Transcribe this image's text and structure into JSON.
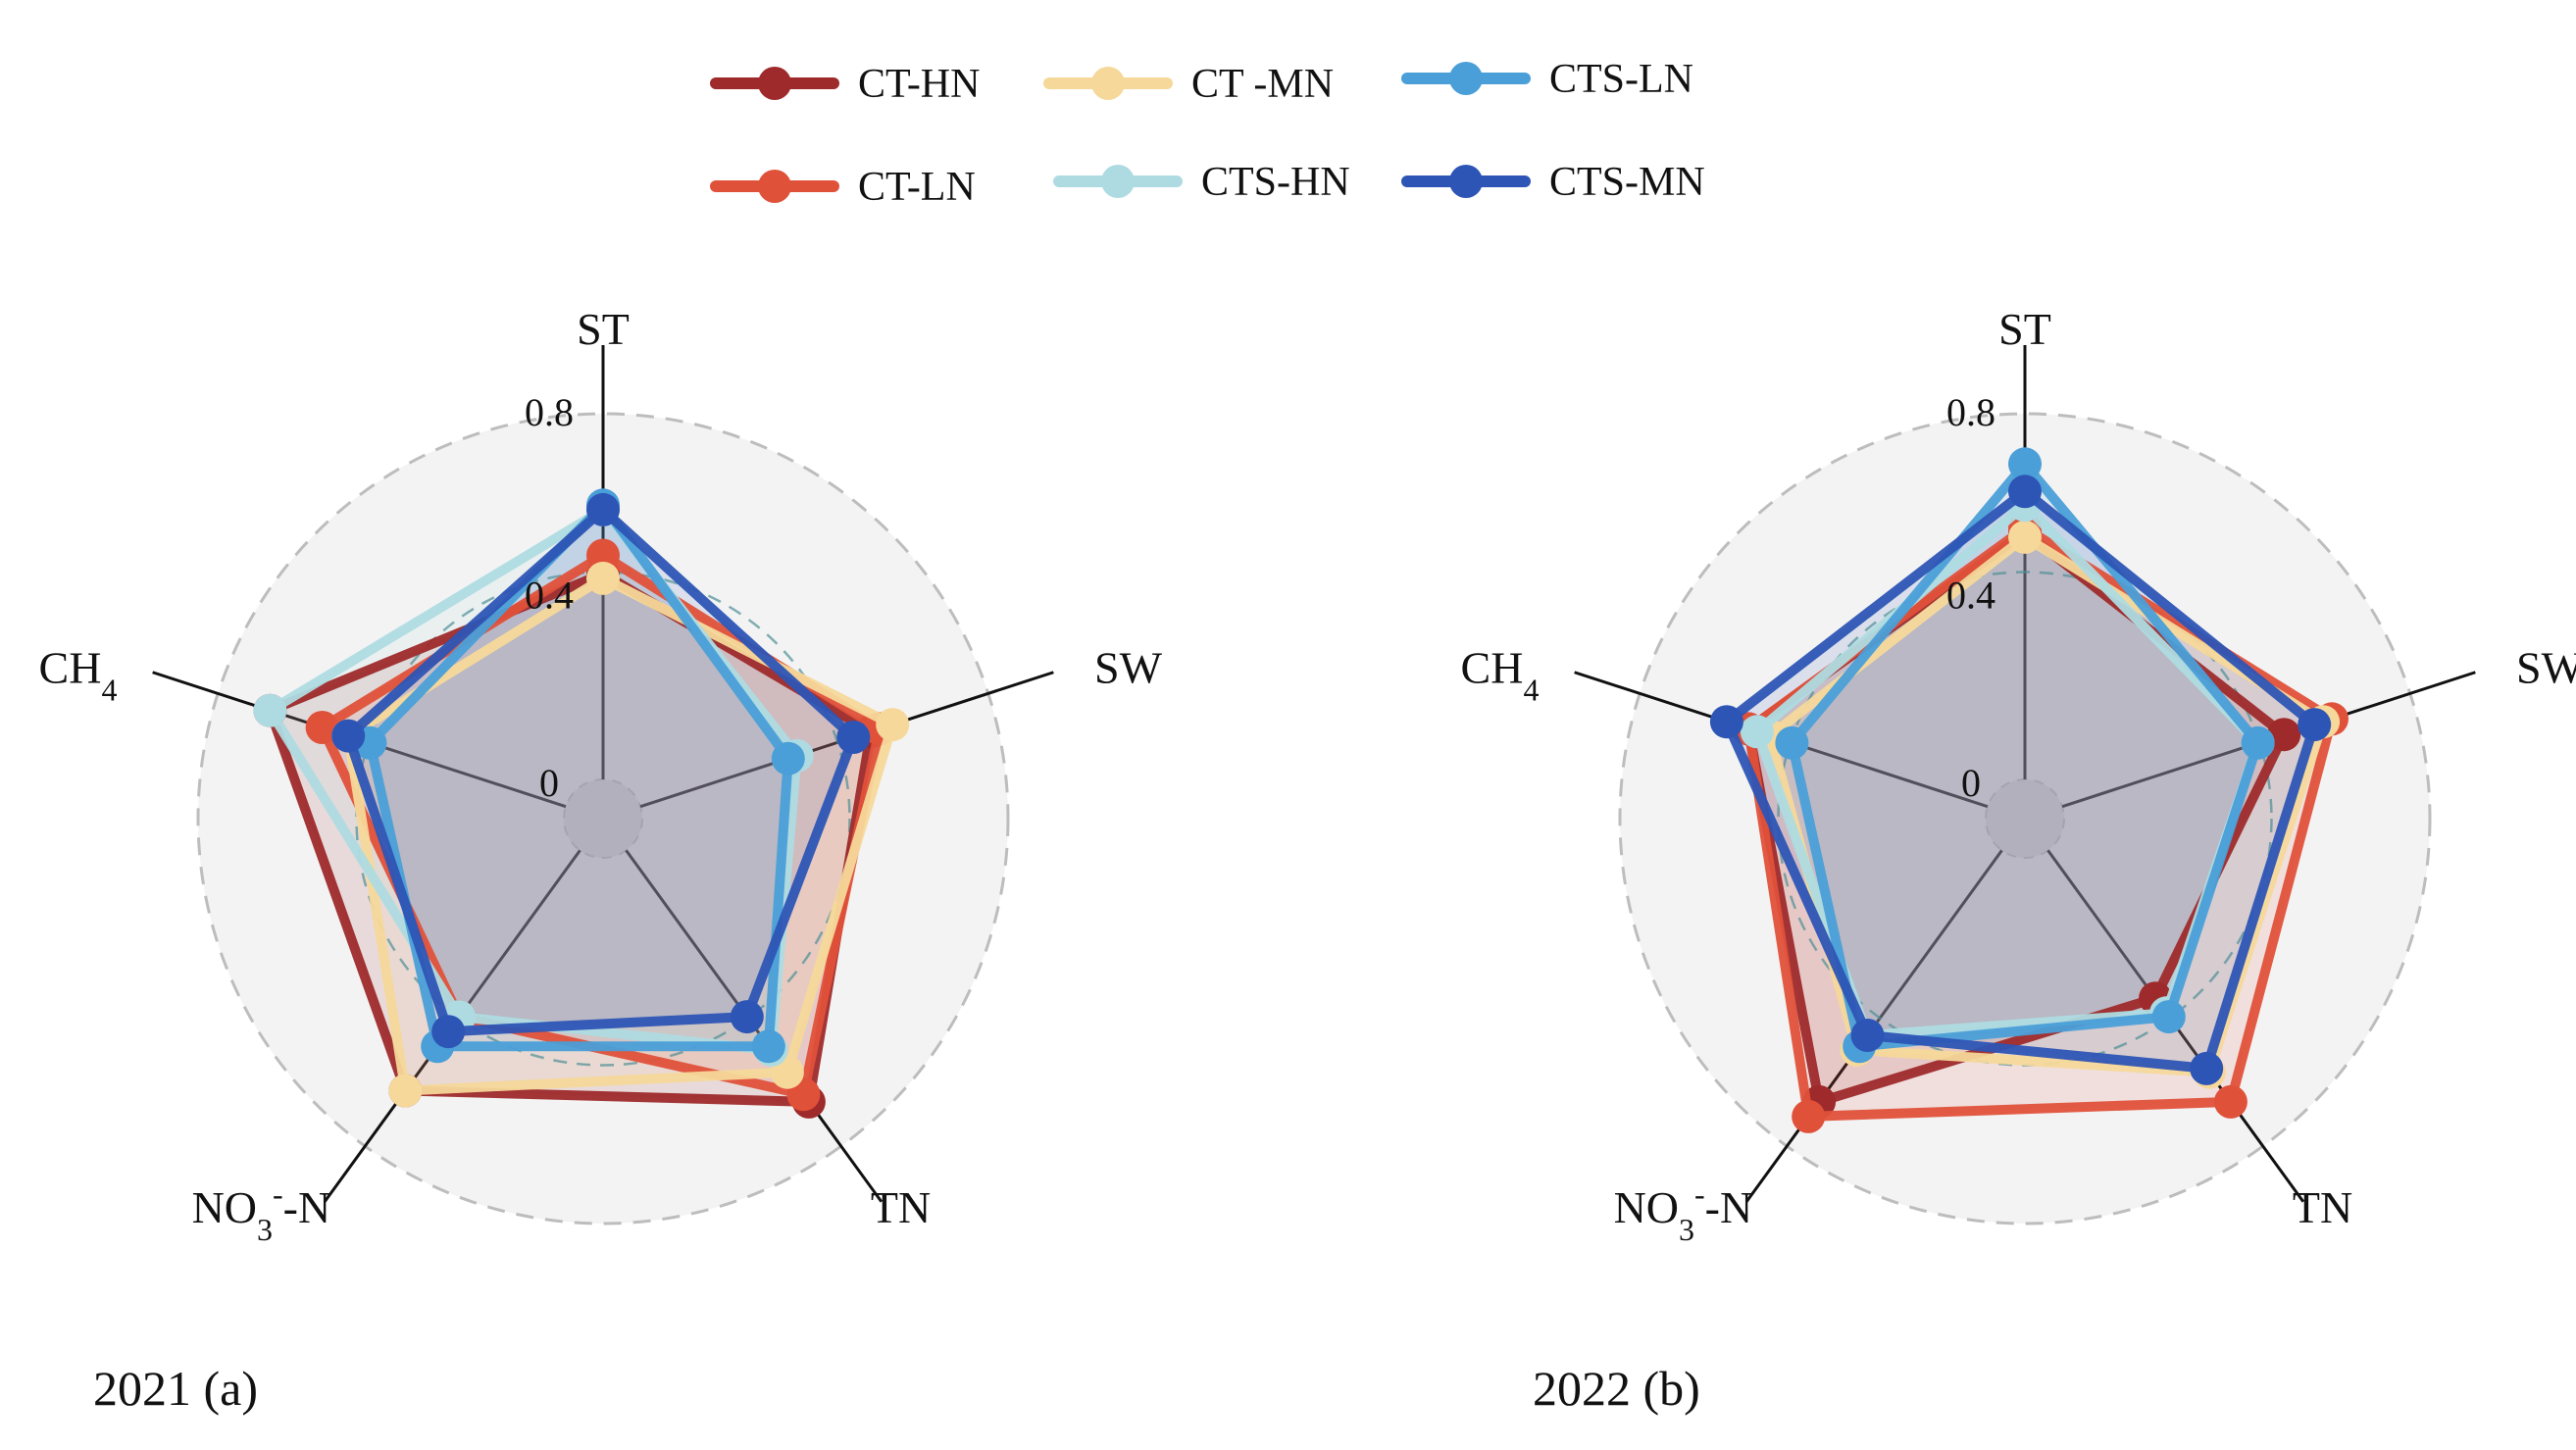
{
  "legend": [
    {
      "name": "CT-HN",
      "color": "#9e2a2b"
    },
    {
      "name": "CT -MN",
      "color": "#f6d89a"
    },
    {
      "name": "CTS-LN",
      "color": "#4a9fd8"
    },
    {
      "name": "CT-LN",
      "color": "#e0513a"
    },
    {
      "name": "CTS-HN",
      "color": "#aedbe2"
    },
    {
      "name": "CTS-MN",
      "color": "#2d55b5"
    }
  ],
  "chart_data": [
    {
      "type": "radar",
      "panel_label": "2021 (a)",
      "axes": [
        "ST",
        "SW",
        "TN",
        "NO3--N",
        "CH4"
      ],
      "tick_labels": [
        "0",
        "0.4",
        "0.8"
      ],
      "rlim": [
        0,
        0.8
      ],
      "series": [
        {
          "name": "CT-HN",
          "values": [
            0.45,
            0.53,
            0.68,
            0.65,
            0.68
          ]
        },
        {
          "name": "CT -MN",
          "values": [
            0.44,
            0.58,
            0.6,
            0.65,
            0.5
          ]
        },
        {
          "name": "CTS-LN",
          "values": [
            0.6,
            0.34,
            0.53,
            0.53,
            0.45
          ]
        },
        {
          "name": "CT-LN",
          "values": [
            0.49,
            0.55,
            0.66,
            0.45,
            0.56
          ]
        },
        {
          "name": "CTS-HN",
          "values": [
            0.59,
            0.36,
            0.54,
            0.45,
            0.68
          ]
        },
        {
          "name": "CTS-MN",
          "values": [
            0.59,
            0.49,
            0.45,
            0.49,
            0.5
          ]
        }
      ]
    },
    {
      "type": "radar",
      "panel_label": "2022 (b)",
      "axes": [
        "ST",
        "SW",
        "TN",
        "NO3--N",
        "CH4"
      ],
      "tick_labels": [
        "0",
        "0.4",
        "0.8"
      ],
      "rlim": [
        0,
        0.8
      ],
      "series": [
        {
          "name": "CT-HN",
          "values": [
            0.54,
            0.51,
            0.4,
            0.68,
            0.55
          ]
        },
        {
          "name": "CT -MN",
          "values": [
            0.53,
            0.6,
            0.6,
            0.54,
            0.5
          ]
        },
        {
          "name": "CTS-LN",
          "values": [
            0.69,
            0.45,
            0.45,
            0.53,
            0.45
          ]
        },
        {
          "name": "CT-LN",
          "values": [
            0.55,
            0.62,
            0.68,
            0.72,
            0.55
          ]
        },
        {
          "name": "CTS-HN",
          "values": [
            0.6,
            0.45,
            0.44,
            0.5,
            0.53
          ]
        },
        {
          "name": "CTS-MN",
          "values": [
            0.63,
            0.58,
            0.59,
            0.5,
            0.6
          ]
        }
      ]
    }
  ]
}
